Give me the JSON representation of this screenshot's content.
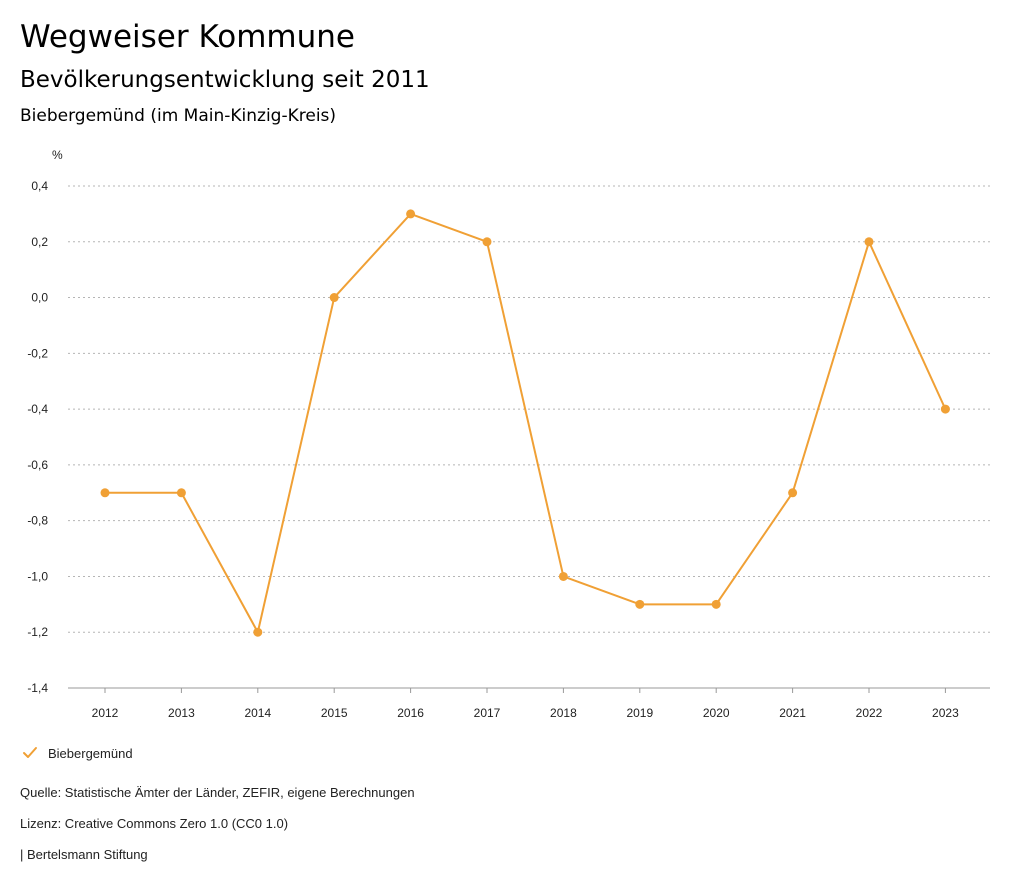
{
  "header": {
    "title": "Wegweiser Kommune",
    "subtitle": "Bevölkerungsentwicklung seit 2011",
    "region": "Biebergemünd (im Main-Kinzig-Kreis)"
  },
  "chart_data": {
    "type": "line",
    "unit_label": "%",
    "categories": [
      "2012",
      "2013",
      "2014",
      "2015",
      "2016",
      "2017",
      "2018",
      "2019",
      "2020",
      "2021",
      "2022",
      "2023"
    ],
    "series": [
      {
        "name": "Biebergemünd",
        "color": "#f0a035",
        "values": [
          -0.7,
          -0.7,
          -1.2,
          0.0,
          0.3,
          0.2,
          -1.0,
          -1.1,
          -1.1,
          -0.7,
          0.2,
          -0.4
        ]
      }
    ],
    "ylim": [
      -1.4,
      0.4
    ],
    "yticks": [
      "0,4",
      "0,2",
      "0,0",
      "-0,2",
      "-0,4",
      "-0,6",
      "-0,8",
      "-1,0",
      "-1,2",
      "-1,4"
    ],
    "ytick_values": [
      0.4,
      0.2,
      0.0,
      -0.2,
      -0.4,
      -0.6,
      -0.8,
      -1.0,
      -1.2,
      -1.4
    ],
    "grid": true,
    "legend_position": "bottom-left"
  },
  "footer": {
    "source": "Quelle: Statistische Ämter der Länder, ZEFIR, eigene Berechnungen",
    "license": "Lizenz: Creative Commons Zero 1.0 (CC0 1.0)",
    "publisher": "| Bertelsmann Stiftung"
  }
}
